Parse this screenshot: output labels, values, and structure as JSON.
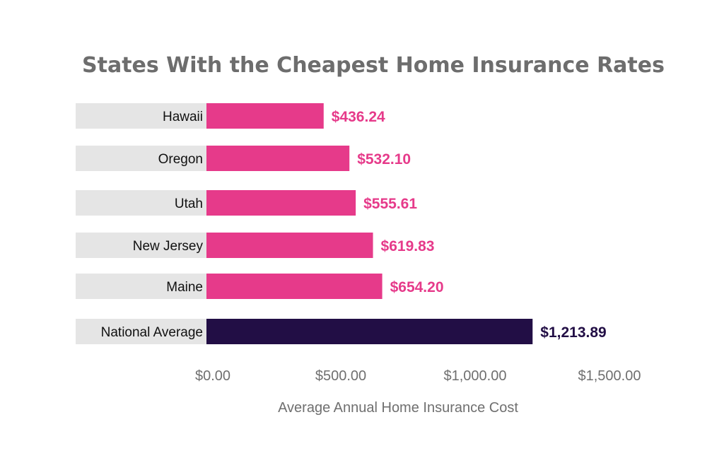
{
  "chart_data": {
    "type": "bar",
    "orientation": "horizontal",
    "title": "States With the Cheapest Home Insurance Rates",
    "xlabel": "Average Annual Home Insurance Cost",
    "ylabel": "",
    "xlim": [
      0,
      1500
    ],
    "x_ticks": [
      0,
      500,
      1000,
      1500
    ],
    "x_tick_labels": [
      "$0.00",
      "$500.00",
      "$1,000.00",
      "$1,500.00"
    ],
    "categories": [
      "Hawaii",
      "Oregon",
      "Utah",
      "New Jersey",
      "Maine",
      "National Average"
    ],
    "values": [
      436.24,
      532.1,
      555.61,
      619.83,
      654.2,
      1213.89
    ],
    "value_labels": [
      "$436.24",
      "$532.10",
      "$555.61",
      "$619.83",
      "$654.20",
      "$1,213.89"
    ],
    "bar_colors": [
      "#e63a8a",
      "#e63a8a",
      "#e63a8a",
      "#e63a8a",
      "#e63a8a",
      "#220e45"
    ],
    "label_background_color": "#e5e5e5",
    "grid": false,
    "legend": "none"
  }
}
